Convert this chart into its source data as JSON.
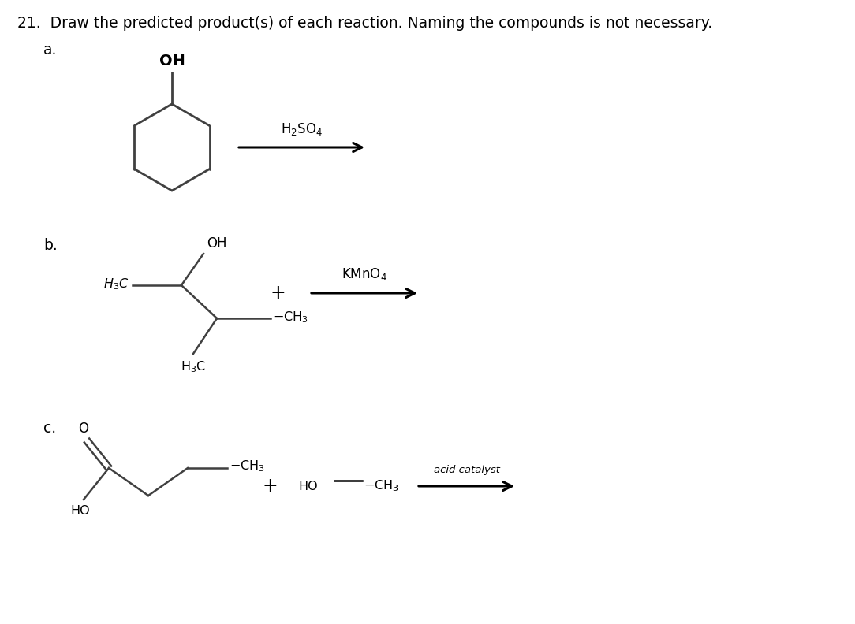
{
  "title_text": "21.  Draw the predicted product(s) of each reaction. Naming the compounds is not necessary.",
  "bg_color": "#ffffff",
  "label_a": "a.",
  "label_b": "b.",
  "label_c": "c.",
  "label_fontsize": 13.5,
  "line_color": "#000000",
  "line_width": 1.8,
  "struct_color": "#404040"
}
